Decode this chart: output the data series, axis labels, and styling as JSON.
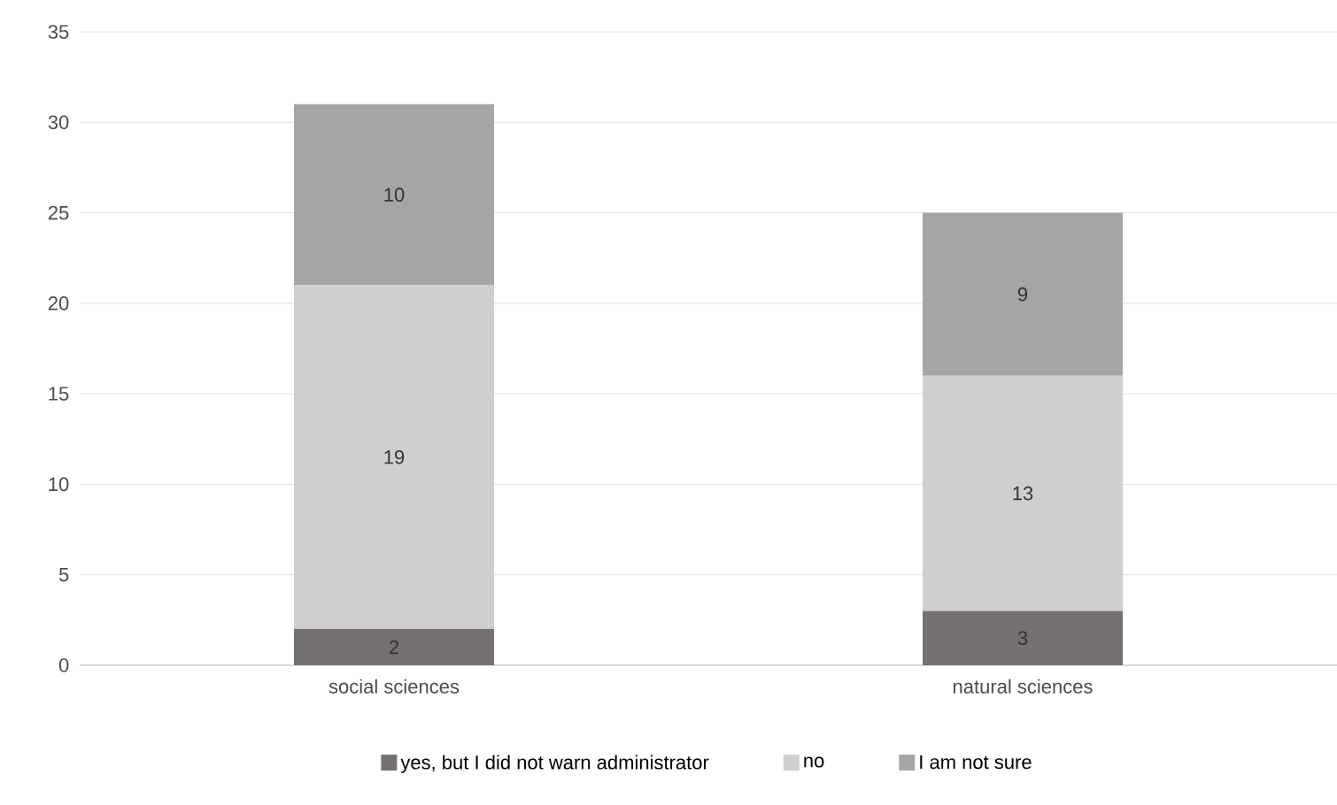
{
  "chart_data": {
    "type": "bar",
    "stacked": true,
    "categories": [
      "social sciences",
      "natural sciences"
    ],
    "series": [
      {
        "name": "yes, but I did not warn administrator",
        "color": "#767171",
        "values": [
          2,
          3
        ]
      },
      {
        "name": "no",
        "color": "#d0cece",
        "values": [
          19,
          13
        ]
      },
      {
        "name": "I am not sure",
        "color": "#a5a5a5",
        "values": [
          10,
          9
        ]
      }
    ],
    "ylim": [
      0,
      35
    ],
    "yticks": [
      0,
      5,
      10,
      15,
      20,
      25,
      30,
      35
    ],
    "grid": "y",
    "legend": "bottom",
    "data_labels": true
  }
}
